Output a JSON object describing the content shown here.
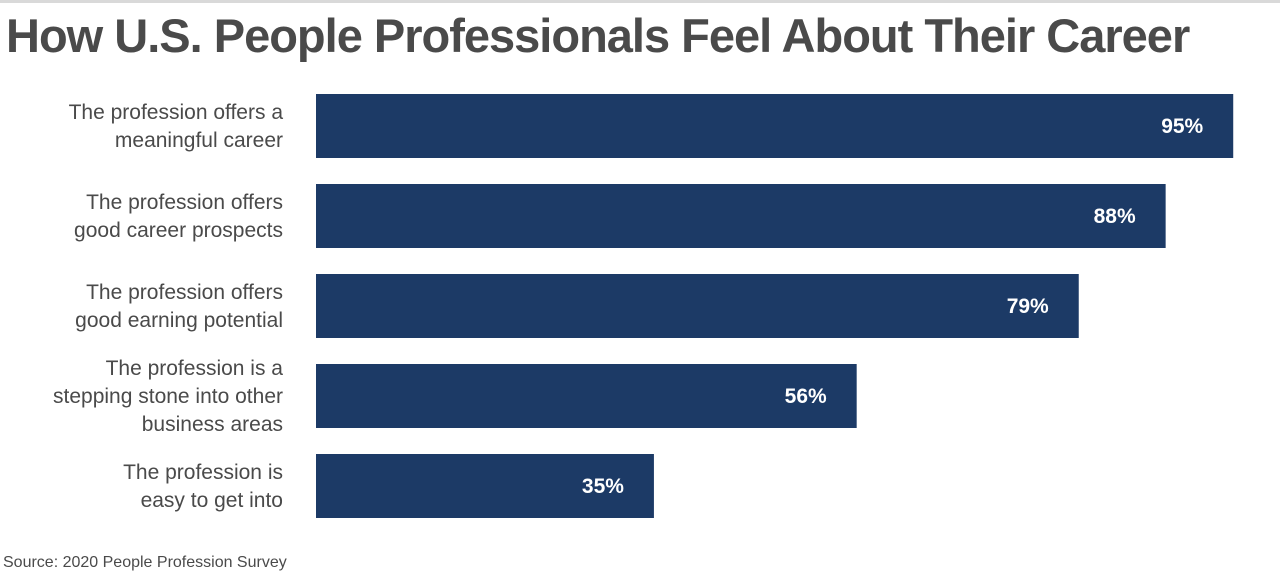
{
  "title": "How U.S. People Professionals Feel About Their Career",
  "source": "Source: 2020 People Profession Survey",
  "colors": {
    "bar": "#1c3a66",
    "text": "#4a4a4a",
    "value_text": "#ffffff"
  },
  "chart_data": {
    "type": "bar",
    "orientation": "horizontal",
    "title": "How U.S. People Professionals Feel About Their Career",
    "categories": [
      [
        "The profession offers a",
        "meaningful career"
      ],
      [
        "The profession offers",
        "good career prospects"
      ],
      [
        "The profession offers",
        "good earning potential"
      ],
      [
        "The profession is a",
        "stepping stone into other",
        "business areas"
      ],
      [
        "The profession is",
        "easy to get into"
      ]
    ],
    "values": [
      95,
      88,
      79,
      56,
      35
    ],
    "value_labels": [
      "95%",
      "88%",
      "79%",
      "56%",
      "35%"
    ],
    "unit": "%",
    "xlim": [
      0,
      100
    ],
    "grid": false,
    "legend": "none"
  }
}
